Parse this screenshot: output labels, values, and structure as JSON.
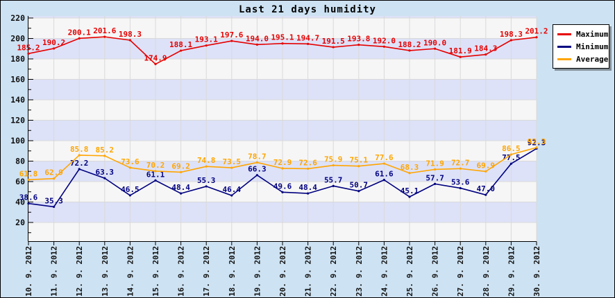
{
  "title": "Last 21 days humidity",
  "colors": {
    "outer_background": "#cde2f2",
    "band_light": "#f6f6f6",
    "band_shaded": "#dde2f9",
    "gridline": "#d9d9d9",
    "axis": "#000000",
    "maximum_series": "#e60000",
    "minimum_series": "#000080",
    "average_series": "#ffa500"
  },
  "chart_data": {
    "type": "line",
    "title": "Last 21 days humidity",
    "xlabel": "",
    "ylabel": "",
    "ylim": [
      0,
      222
    ],
    "y_ticks": [
      20,
      40,
      60,
      80,
      100,
      120,
      140,
      160,
      180,
      200,
      220
    ],
    "grid": true,
    "legend_position": "top-right",
    "x_tick_rotation": -90,
    "categories": [
      "10. 9. 2012",
      "11. 9. 2012",
      "12. 9. 2012",
      "13. 9. 2012",
      "14. 9. 2012",
      "15. 9. 2012",
      "16. 9. 2012",
      "17. 9. 2012",
      "18. 9. 2012",
      "19. 9. 2012",
      "20. 9. 2012",
      "21. 9. 2012",
      "22. 9. 2012",
      "23. 9. 2012",
      "24. 9. 2012",
      "25. 9. 2012",
      "26. 9. 2012",
      "27. 9. 2012",
      "28. 9. 2012",
      "29. 9. 2012",
      "30. 9. 2012"
    ],
    "series": [
      {
        "name": "Maximum",
        "color": "#e60000",
        "values": [
          185.2,
          190.2,
          200.1,
          201.6,
          198.3,
          174.9,
          188.1,
          193.1,
          197.6,
          194.0,
          195.1,
          194.7,
          191.5,
          193.8,
          192.0,
          188.2,
          190.0,
          181.9,
          184.3,
          198.3,
          201.2
        ]
      },
      {
        "name": "Minimum",
        "color": "#000080",
        "values": [
          38.6,
          35.3,
          72.2,
          63.3,
          46.5,
          61.1,
          48.4,
          55.3,
          46.4,
          66.3,
          49.6,
          48.4,
          55.7,
          50.7,
          61.6,
          45.1,
          57.7,
          53.6,
          47.0,
          77.5,
          92.3
        ]
      },
      {
        "name": "Average",
        "color": "#ffa500",
        "values": [
          61.8,
          62.9,
          85.8,
          85.2,
          73.6,
          70.2,
          69.2,
          74.8,
          73.5,
          78.7,
          72.9,
          72.6,
          75.9,
          75.1,
          77.6,
          68.3,
          71.9,
          72.7,
          69.9,
          86.5,
          93.3
        ]
      }
    ]
  }
}
